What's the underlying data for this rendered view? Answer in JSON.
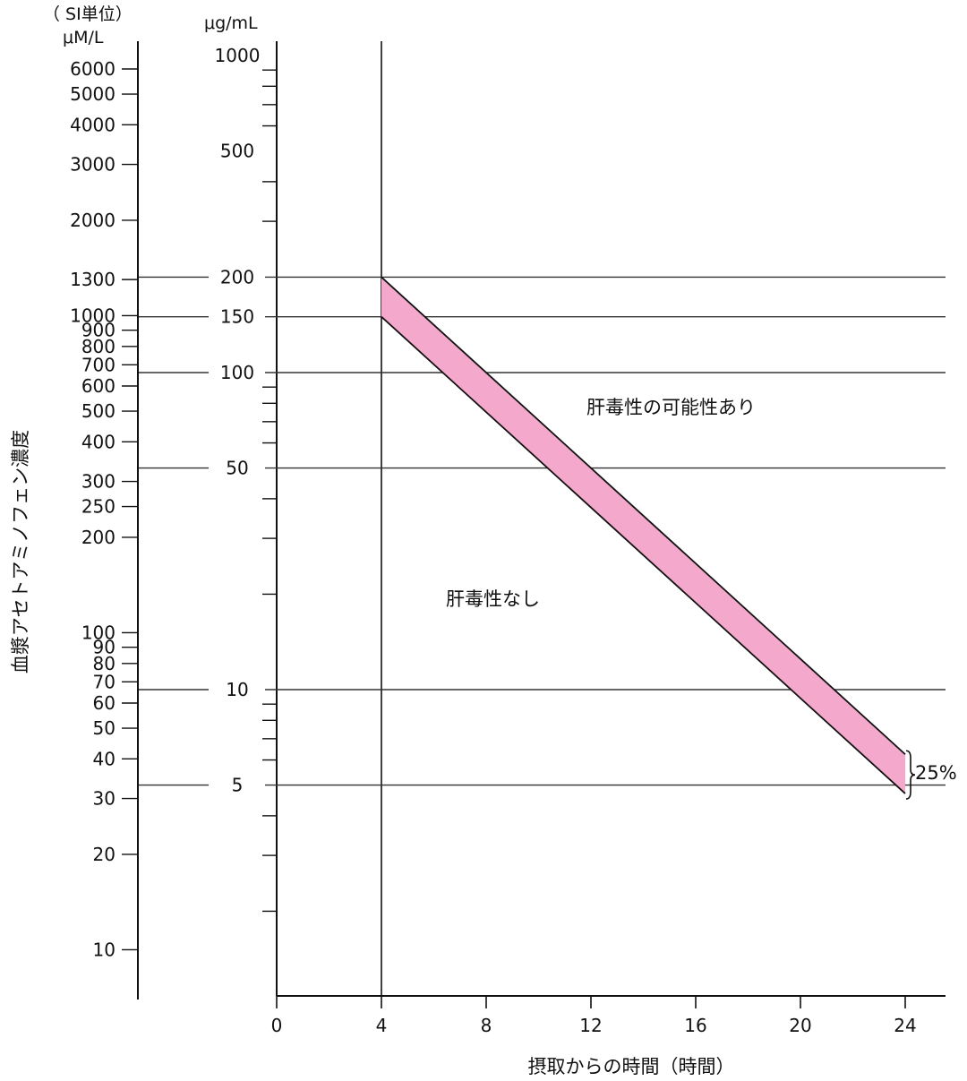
{
  "chart_data": {
    "type": "area",
    "title": "",
    "xlabel": "摂取からの時間（時間）",
    "ylabel": "血漿アセトアミノフェン濃度",
    "si_unit_label": "（ SI単位）",
    "si_unit": "μM/L",
    "primary_unit": "μg/mL",
    "x_ticks": [
      0,
      4,
      8,
      12,
      16,
      20,
      24
    ],
    "xlim": [
      0,
      24
    ],
    "y_scale": "log",
    "ylim": [
      4,
      1000
    ],
    "y_ticks_ugml": [
      "1000",
      "500",
      "200",
      "150",
      "100",
      "50",
      "10",
      "5"
    ],
    "y_ticks_si": [
      "6000",
      "5000",
      "4000",
      "3000",
      "2000",
      "1300",
      "1000",
      "900",
      "800",
      "700",
      "600",
      "500",
      "400",
      "300",
      "250",
      "200",
      "100",
      "90",
      "80",
      "70",
      "60",
      "50",
      "40",
      "30",
      "20",
      "10"
    ],
    "reference_lines_ugml": [
      200,
      150,
      100,
      50,
      10,
      5
    ],
    "series": [
      {
        "name": "",
        "x": [
          4,
          24
        ],
        "y": [
          200,
          6.25
        ]
      },
      {
        "name": "",
        "x": [
          4,
          24
        ],
        "y": [
          150,
          4.7
        ]
      }
    ],
    "band_color": "#f4a8cc",
    "annotations": {
      "toxic": "肝毒性の可能性あり",
      "nontoxic": "肝毒性なし",
      "band_width": "25%"
    }
  }
}
